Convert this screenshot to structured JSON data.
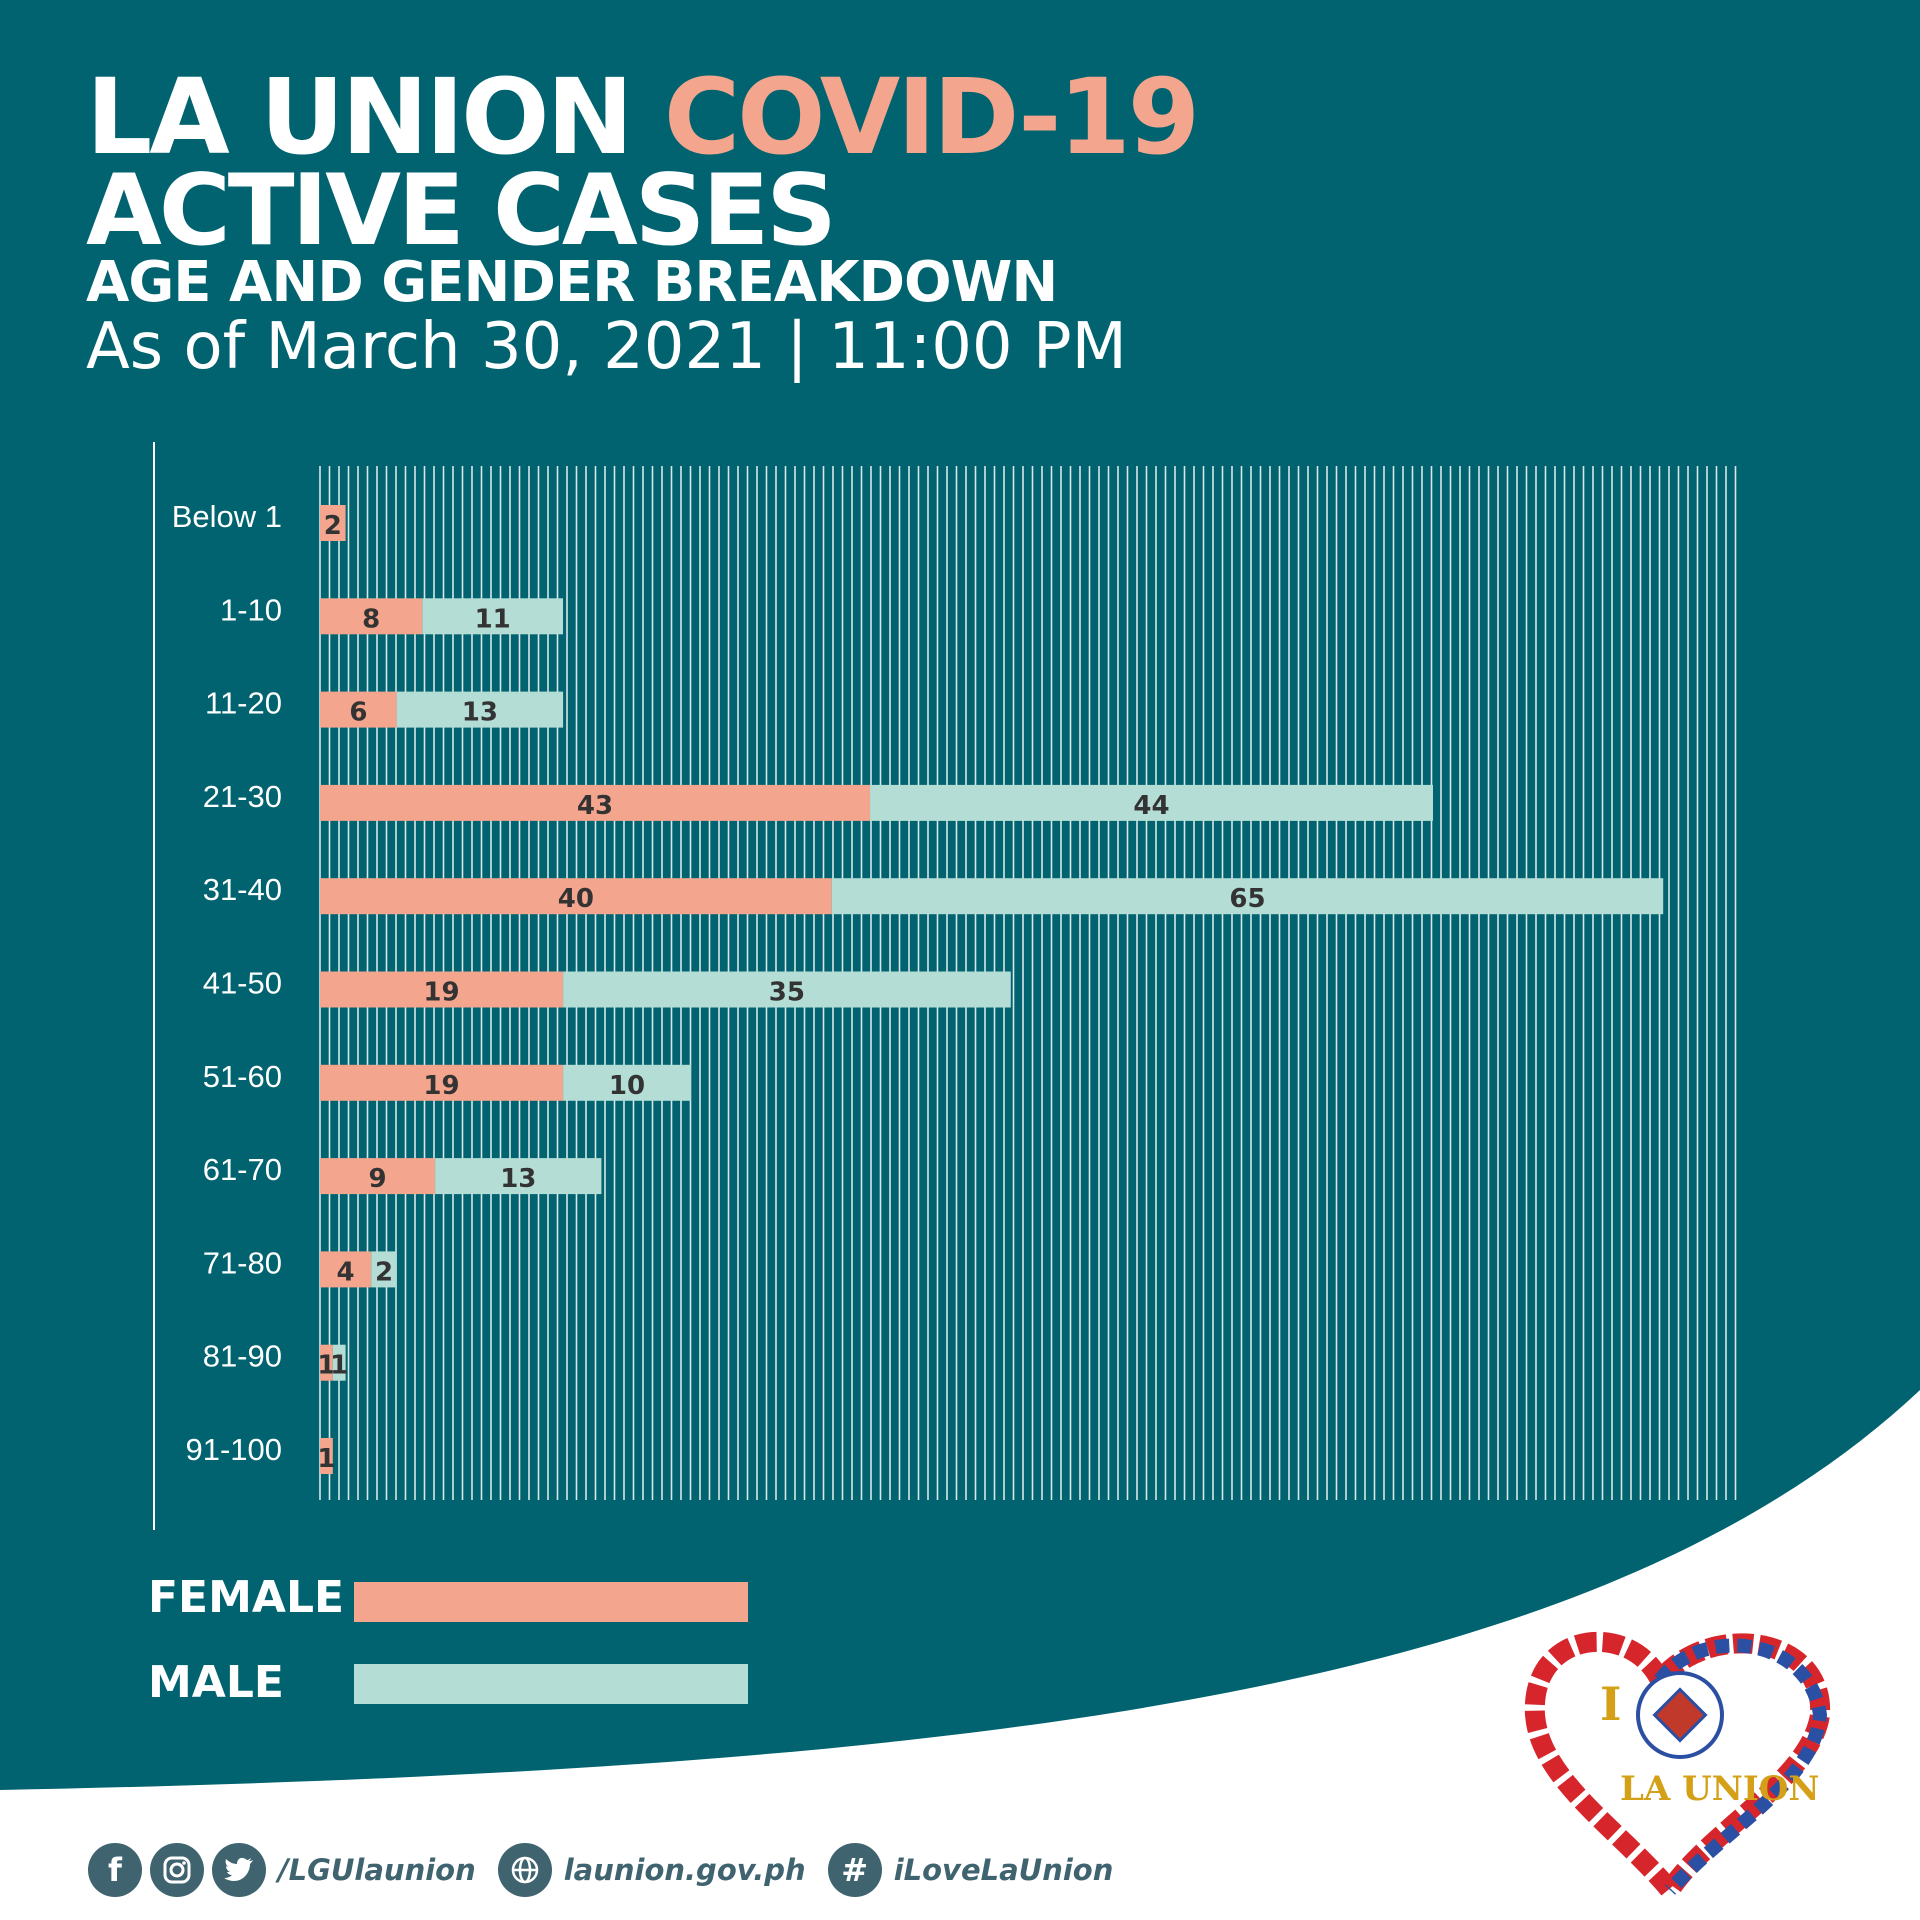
{
  "header": {
    "title_part1": "LA UNION ",
    "title_part2": "COVID-19",
    "title_line2": "ACTIVE CASES",
    "subtitle": "AGE AND GENDER BREAKDOWN",
    "date": "As of March 30, 2021 | 11:00 PM"
  },
  "colors": {
    "background": "#00636f",
    "female": "#f4a58d",
    "male": "#b3ddd5",
    "footer_text": "#3f6470"
  },
  "chart_data": {
    "type": "bar",
    "orientation": "horizontal",
    "stacked": true,
    "categories": [
      "Below 1",
      "1-10",
      "11-20",
      "21-30",
      "31-40",
      "41-50",
      "51-60",
      "61-70",
      "71-80",
      "81-90",
      "91-100"
    ],
    "series": [
      {
        "name": "FEMALE",
        "values": [
          2,
          8,
          6,
          43,
          40,
          19,
          19,
          9,
          4,
          1,
          1
        ]
      },
      {
        "name": "MALE",
        "values": [
          0,
          11,
          13,
          44,
          65,
          35,
          10,
          13,
          2,
          1,
          0
        ]
      }
    ],
    "xlim": [
      0,
      111
    ],
    "legend_position": "bottom-left",
    "grid": "vertical"
  },
  "legend": {
    "female_label": "FEMALE",
    "male_label": "MALE"
  },
  "logo": {
    "letter_i": "I",
    "name": "LA UNION"
  },
  "footer": {
    "icons": [
      "facebook-icon",
      "instagram-icon",
      "twitter-icon",
      "globe-icon",
      "hashtag-icon"
    ],
    "social_handle": "/LGUlaunion",
    "website": "launion.gov.ph",
    "hashtag": "iLoveLaUnion"
  }
}
